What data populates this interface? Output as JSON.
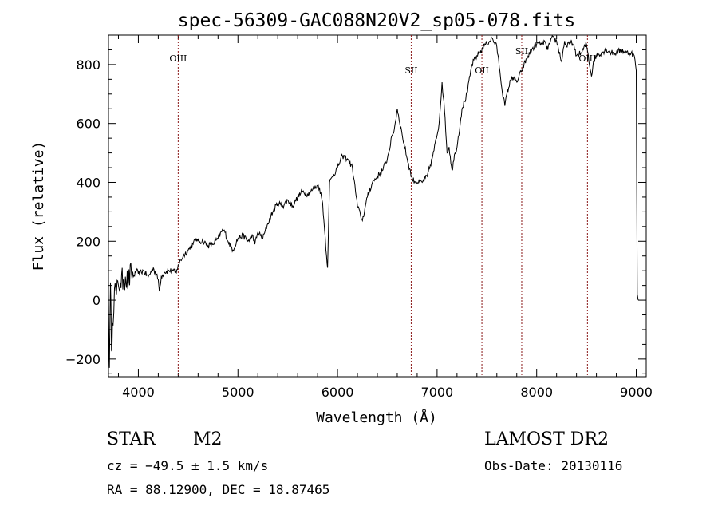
{
  "chart_data": {
    "type": "line",
    "title": "spec-56309-GAC088N20V2_sp05-078.fits",
    "xlabel": "Wavelength (Å)",
    "ylabel": "Flux (relative)",
    "xlim": [
      3700,
      9100
    ],
    "ylim": [
      -260,
      900
    ],
    "x_ticks": [
      4000,
      5000,
      6000,
      7000,
      8000,
      9000
    ],
    "y_ticks": [
      -200,
      0,
      200,
      400,
      600,
      800
    ],
    "grid": false,
    "line_color": "#000000",
    "marker_color": "#8b1a1a",
    "series": [
      {
        "x": [
          3700,
          3710,
          3720,
          3730,
          3740,
          3760,
          3780,
          3800,
          3820,
          3850,
          3870,
          3900,
          3930,
          3950,
          3980,
          4000,
          4050,
          4100,
          4150,
          4200,
          4210,
          4230,
          4260,
          4300,
          4350,
          4380,
          4400,
          4450,
          4500,
          4550,
          4580,
          4600,
          4650,
          4700,
          4750,
          4800,
          4850,
          4870,
          4900,
          4950,
          5000,
          5050,
          5100,
          5150,
          5170,
          5200,
          5250,
          5300,
          5350,
          5400,
          5450,
          5500,
          5550,
          5600,
          5650,
          5700,
          5750,
          5800,
          5820,
          5850,
          5870,
          5890,
          5900,
          5920,
          5950,
          6000,
          6050,
          6100,
          6150,
          6200,
          6230,
          6250,
          6280,
          6300,
          6350,
          6400,
          6450,
          6500,
          6550,
          6570,
          6600,
          6650,
          6700,
          6750,
          6800,
          6850,
          6900,
          6950,
          7000,
          7020,
          7050,
          7080,
          7100,
          7120,
          7150,
          7180,
          7200,
          7250,
          7300,
          7350,
          7400,
          7450,
          7480,
          7500,
          7550,
          7600,
          7630,
          7650,
          7680,
          7700,
          7750,
          7800,
          7850,
          7900,
          7950,
          8000,
          8050,
          8080,
          8100,
          8130,
          8150,
          8200,
          8250,
          8280,
          8300,
          8350,
          8400,
          8450,
          8500,
          8550,
          8570,
          8600,
          8650,
          8700,
          8750,
          8800,
          8850,
          8900,
          8950,
          8980,
          9000,
          9010,
          9020
        ],
        "y": [
          20,
          -230,
          60,
          -170,
          -80,
          40,
          20,
          50,
          60,
          70,
          80,
          60,
          95,
          80,
          100,
          90,
          100,
          80,
          110,
          70,
          30,
          80,
          95,
          100,
          100,
          90,
          120,
          150,
          170,
          190,
          210,
          200,
          200,
          185,
          190,
          210,
          240,
          230,
          200,
          170,
          210,
          220,
          200,
          220,
          190,
          230,
          210,
          260,
          300,
          330,
          320,
          340,
          320,
          350,
          370,
          360,
          375,
          390,
          380,
          330,
          240,
          150,
          110,
          400,
          420,
          450,
          490,
          480,
          450,
          320,
          290,
          270,
          320,
          350,
          400,
          420,
          440,
          480,
          560,
          580,
          650,
          560,
          480,
          410,
          400,
          400,
          420,
          480,
          560,
          600,
          740,
          620,
          500,
          520,
          440,
          500,
          520,
          650,
          700,
          800,
          830,
          850,
          870,
          870,
          890,
          860,
          780,
          720,
          660,
          700,
          760,
          740,
          780,
          820,
          850,
          870,
          870,
          880,
          850,
          870,
          890,
          880,
          810,
          880,
          860,
          880,
          830,
          840,
          870,
          760,
          810,
          830,
          840,
          850,
          840,
          840,
          850,
          840,
          840,
          830,
          780,
          20,
          0
        ]
      }
    ],
    "lines": [
      {
        "label": "OIII",
        "x": 4400,
        "label_y": 810
      },
      {
        "label": "SII",
        "x": 6740,
        "label_y": 770
      },
      {
        "label": "OII",
        "x": 7450,
        "label_y": 770
      },
      {
        "label": "SII",
        "x": 7850,
        "label_y": 835
      },
      {
        "label": "OIII",
        "x": 8510,
        "label_y": 810
      }
    ]
  },
  "info": {
    "class": "STAR",
    "subclass": "M2",
    "survey": "LAMOST DR2",
    "cz": "cz = −49.5 ± 1.5 km/s",
    "obs_date": "Obs-Date: 20130116",
    "coords": "RA =  88.12900, DEC =  18.87465"
  }
}
